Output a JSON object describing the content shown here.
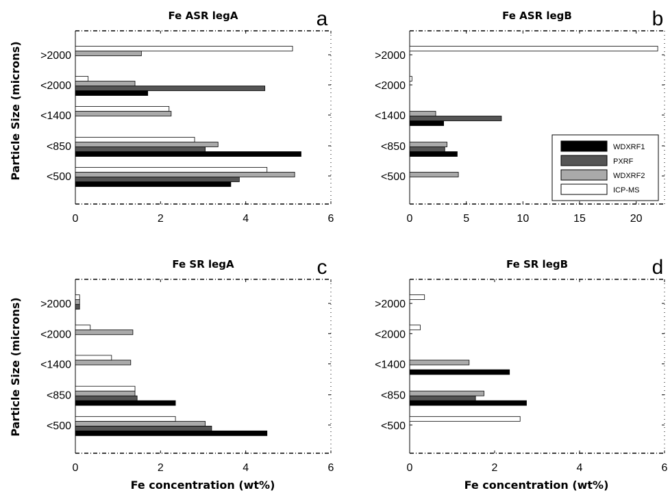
{
  "figure": {
    "ylabel": "Particle Size (microns)",
    "xlabel": "Fe concentration (wt%)"
  },
  "legend": [
    {
      "name": "WDXRF1",
      "color": "#000000"
    },
    {
      "name": "PXRF",
      "color": "#555555"
    },
    {
      "name": "WDXRF2",
      "color": "#aaaaaa"
    },
    {
      "name": "ICP-MS",
      "color": "#ffffff"
    }
  ],
  "chart_data": [
    {
      "type": "bar",
      "orientation": "horizontal",
      "letter": "a",
      "title": "Fe ASR legA",
      "categories": [
        ">2000",
        "<2000",
        "<1400",
        "<850",
        "<500"
      ],
      "xlim": [
        0,
        6
      ],
      "xticks": [
        "0",
        "2",
        "4",
        "6"
      ],
      "series": [
        {
          "name": "WDXRF1",
          "values": [
            null,
            1.7,
            null,
            5.3,
            3.65
          ]
        },
        {
          "name": "PXRF",
          "values": [
            null,
            4.45,
            null,
            3.05,
            3.85
          ]
        },
        {
          "name": "WDXRF2",
          "values": [
            1.55,
            1.4,
            2.25,
            3.35,
            5.15
          ]
        },
        {
          "name": "ICP-MS",
          "values": [
            5.1,
            0.3,
            2.2,
            2.8,
            4.5
          ]
        }
      ]
    },
    {
      "type": "bar",
      "orientation": "horizontal",
      "letter": "b",
      "title": "Fe ASR legB",
      "categories": [
        ">2000",
        "<2000",
        "<1400",
        "<850",
        "<500"
      ],
      "xlim": [
        0,
        22.5
      ],
      "xticks": [
        "0",
        "5",
        "10",
        "15",
        "20"
      ],
      "xtick_values": [
        0,
        5,
        10,
        15,
        20
      ],
      "series": [
        {
          "name": "WDXRF1",
          "values": [
            null,
            null,
            3.0,
            4.2,
            null
          ]
        },
        {
          "name": "PXRF",
          "values": [
            null,
            null,
            8.1,
            3.1,
            null
          ]
        },
        {
          "name": "WDXRF2",
          "values": [
            null,
            null,
            2.3,
            3.3,
            4.3
          ]
        },
        {
          "name": "ICP-MS",
          "values": [
            21.9,
            0.2,
            null,
            null,
            null
          ]
        }
      ]
    },
    {
      "type": "bar",
      "orientation": "horizontal",
      "letter": "c",
      "title": "Fe SR legA",
      "categories": [
        ">2000",
        "<2000",
        "<1400",
        "<850",
        "<500"
      ],
      "xlim": [
        0,
        6
      ],
      "xticks": [
        "0",
        "2",
        "4",
        "6"
      ],
      "series": [
        {
          "name": "WDXRF1",
          "values": [
            null,
            null,
            null,
            2.35,
            4.5
          ]
        },
        {
          "name": "PXRF",
          "values": [
            0.1,
            null,
            null,
            1.45,
            3.2
          ]
        },
        {
          "name": "WDXRF2",
          "values": [
            0.1,
            1.35,
            1.3,
            1.4,
            3.05
          ]
        },
        {
          "name": "ICP-MS",
          "values": [
            0.1,
            0.35,
            0.85,
            1.4,
            2.35
          ]
        }
      ]
    },
    {
      "type": "bar",
      "orientation": "horizontal",
      "letter": "d",
      "title": "Fe SR legB",
      "categories": [
        ">2000",
        "<2000",
        "<1400",
        "<850",
        "<500"
      ],
      "xlim": [
        0,
        6
      ],
      "xticks": [
        "0",
        "2",
        "4",
        "6"
      ],
      "series": [
        {
          "name": "WDXRF1",
          "values": [
            null,
            null,
            2.35,
            2.75,
            null
          ]
        },
        {
          "name": "PXRF",
          "values": [
            null,
            null,
            null,
            1.55,
            null
          ]
        },
        {
          "name": "WDXRF2",
          "values": [
            null,
            null,
            1.4,
            1.75,
            null
          ]
        },
        {
          "name": "ICP-MS",
          "values": [
            0.35,
            0.25,
            null,
            null,
            2.6
          ]
        }
      ]
    }
  ]
}
